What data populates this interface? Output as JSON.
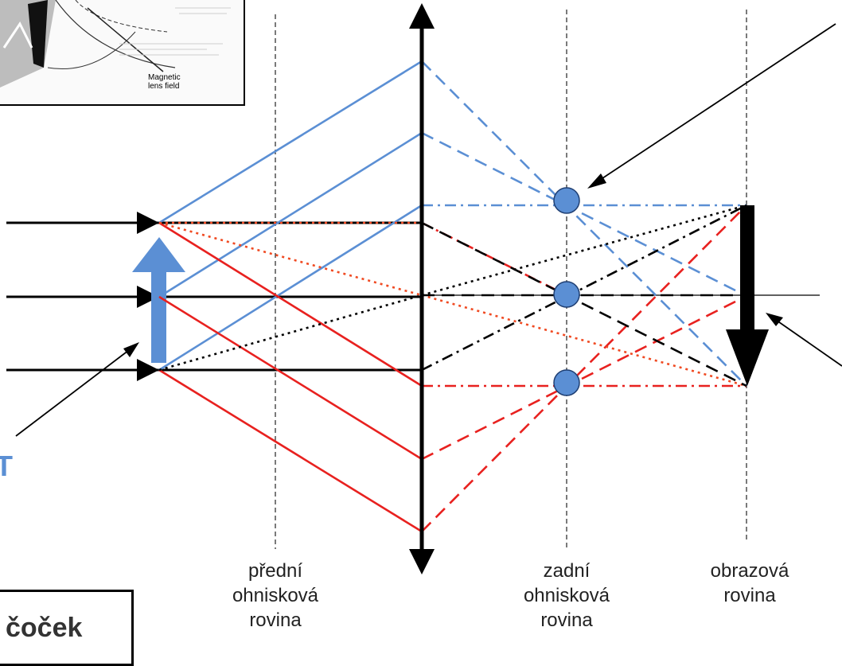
{
  "inset": {
    "label_line1": "Magnetic",
    "label_line2": "lens field"
  },
  "title": "čoček",
  "object_label": "T",
  "planes": {
    "front_focal": [
      "přední",
      "ohnisková",
      "rovina"
    ],
    "back_focal": [
      "zadní",
      "ohnisková",
      "rovina"
    ],
    "image": [
      "obrazová",
      "rovina"
    ]
  },
  "colors": {
    "blue": "#5b8fd4",
    "red": "#e8211f",
    "orange_red": "#f04a22",
    "black": "#000000",
    "focal_point": "#5b8fd4"
  }
}
